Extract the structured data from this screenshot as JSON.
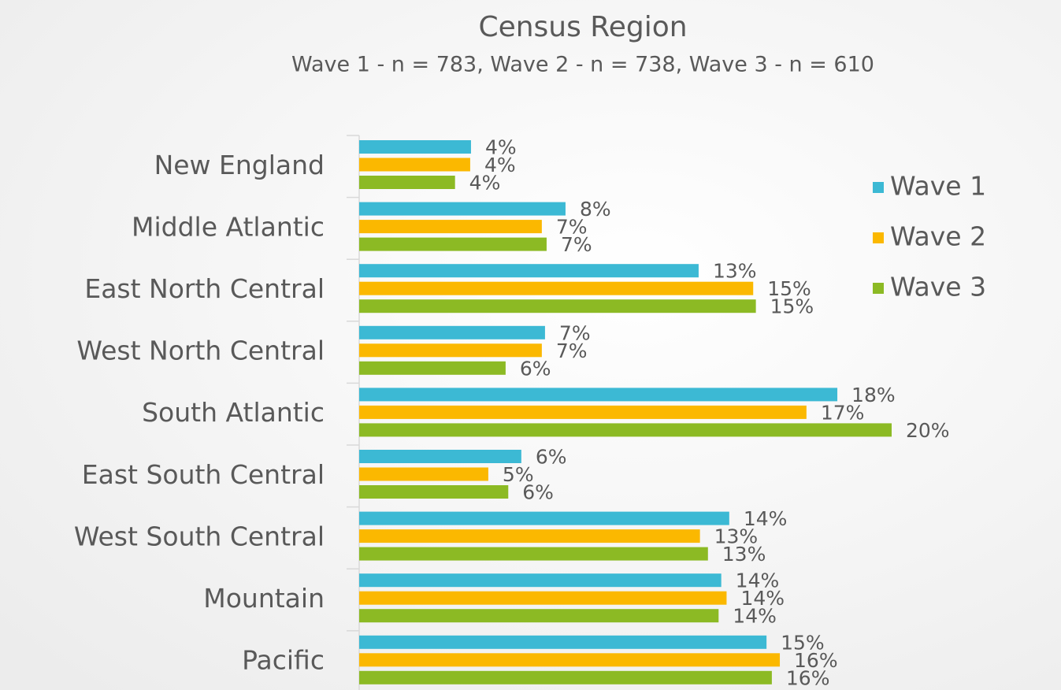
{
  "chart_data": {
    "type": "barh",
    "title": "Census Region",
    "subtitle": "Wave 1 - n = 783, Wave 2 - n = 738, Wave 3 - n = 610",
    "categories": [
      "New England",
      "Middle Atlantic",
      "East North Central",
      "West North Central",
      "South Atlantic",
      "East South Central",
      "West South Central",
      "Mountain",
      "Pacific"
    ],
    "series": [
      {
        "name": "Wave 1",
        "color": "#3cb9d4",
        "values": [
          4.2,
          7.75,
          12.75,
          6.98,
          17.96,
          6.09,
          13.9,
          13.6,
          15.3
        ],
        "value_labels": [
          "4%",
          "8%",
          "13%",
          "7%",
          "18%",
          "6%",
          "14%",
          "14%",
          "15%"
        ]
      },
      {
        "name": "Wave 2",
        "color": "#fbb800",
        "values": [
          4.17,
          6.86,
          14.8,
          6.86,
          16.8,
          4.85,
          12.8,
          13.8,
          15.8
        ],
        "value_labels": [
          "4%",
          "7%",
          "15%",
          "7%",
          "17%",
          "5%",
          "13%",
          "14%",
          "16%"
        ]
      },
      {
        "name": "Wave 3",
        "color": "#8cba24",
        "values": [
          3.6,
          7.04,
          14.9,
          5.5,
          20,
          5.6,
          13.1,
          13.5,
          15.5
        ],
        "value_labels": [
          "4%",
          "7%",
          "15%",
          "6%",
          "20%",
          "6%",
          "13%",
          "14%",
          "16%"
        ]
      }
    ],
    "legend": "right"
  }
}
